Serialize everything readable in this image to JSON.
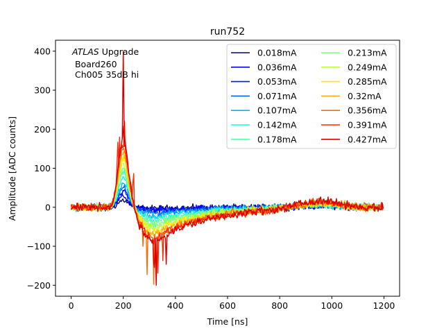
{
  "chart_data": {
    "type": "line",
    "title": "run752",
    "xlabel": "Time [ns]",
    "ylabel": "Amplitude [ADC counts]",
    "xlim": [
      -60,
      1260
    ],
    "ylim": [
      -228,
      428
    ],
    "x_ticks": [
      0,
      200,
      400,
      600,
      800,
      1000,
      1200
    ],
    "y_ticks": [
      -200,
      -100,
      0,
      100,
      200,
      300,
      400
    ],
    "x_tick_labels": [
      "0",
      "200",
      "400",
      "600",
      "800",
      "1000",
      "1200"
    ],
    "y_tick_labels": [
      "−200",
      "−100",
      "0",
      "100",
      "200",
      "300",
      "400"
    ],
    "annotation": {
      "atlas": "ATLAS",
      "line1_rest": " Upgrade",
      "line2": " Board260",
      "line3": " Ch005 35dB hi"
    },
    "legend_position": "upper right",
    "pulse_shape": {
      "baseline_noise": 9,
      "positive_peak_time_ns": 200,
      "negative_peak_time_ns": 320,
      "late_bump_time_ns": 950,
      "spike_time_ns": 200,
      "spike_value": 400
    },
    "series": [
      {
        "name": "0.018mA",
        "color": "#00007f",
        "peak": 18,
        "trough": -3,
        "bump": 3
      },
      {
        "name": "0.036mA",
        "color": "#0000db",
        "peak": 28,
        "trough": -6,
        "bump": 4
      },
      {
        "name": "0.053mA",
        "color": "#0010ff",
        "peak": 38,
        "trough": -10,
        "bump": 5
      },
      {
        "name": "0.071mA",
        "color": "#0064ff",
        "peak": 50,
        "trough": -15,
        "bump": 6
      },
      {
        "name": "0.107mA",
        "color": "#00b4ff",
        "peak": 62,
        "trough": -22,
        "bump": 7
      },
      {
        "name": "0.142mA",
        "color": "#1ff8d8",
        "peak": 75,
        "trough": -30,
        "bump": 8
      },
      {
        "name": "0.178mA",
        "color": "#5bffaa",
        "peak": 88,
        "trough": -38,
        "bump": 9
      },
      {
        "name": "0.213mA",
        "color": "#7dff7a",
        "peak": 100,
        "trough": -46,
        "bump": 10
      },
      {
        "name": "0.249mA",
        "color": "#beff3a",
        "peak": 112,
        "trough": -54,
        "bump": 11
      },
      {
        "name": "0.285mA",
        "color": "#ffe500",
        "peak": 125,
        "trough": -62,
        "bump": 12
      },
      {
        "name": "0.32mA",
        "color": "#ffb000",
        "peak": 138,
        "trough": -70,
        "bump": 14
      },
      {
        "name": "0.356mA",
        "color": "#ff6a00",
        "peak": 150,
        "trough": -78,
        "bump": 16
      },
      {
        "name": "0.391mA",
        "color": "#ff2a00",
        "peak": 162,
        "trough": -85,
        "bump": 18
      },
      {
        "name": "0.427mA",
        "color": "#d40000",
        "peak": 175,
        "trough": -90,
        "bump": 20
      }
    ]
  }
}
